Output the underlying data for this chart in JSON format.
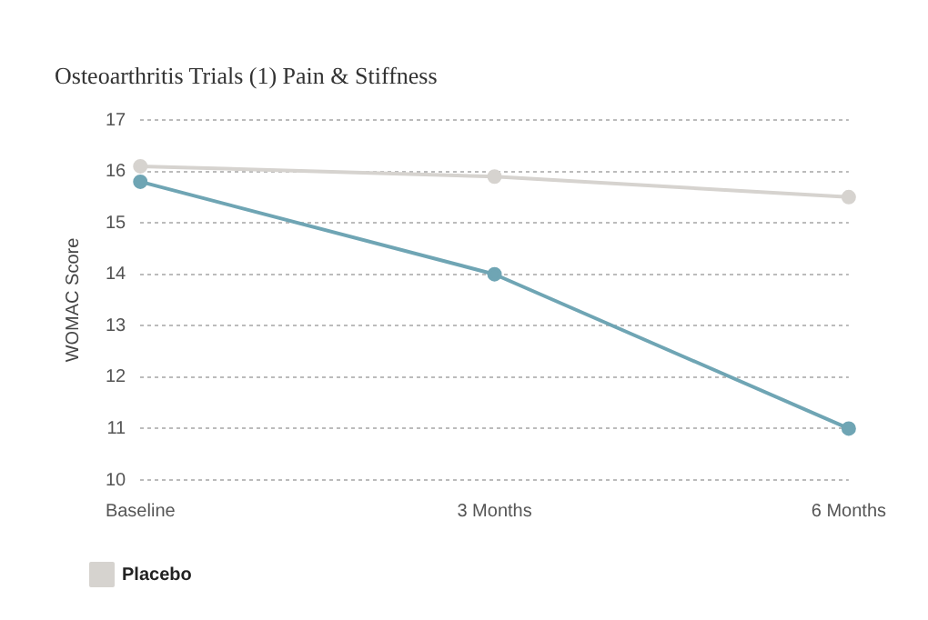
{
  "chart_data": {
    "type": "line",
    "title": "Osteoarthritis Trials (1) Pain & Stiffness",
    "ylabel": "WOMAC Score",
    "categories": [
      "Baseline",
      "3 Months",
      "6 Months"
    ],
    "series": [
      {
        "name": "Placebo",
        "color": "#d6d3cf",
        "values": [
          16.1,
          15.9,
          15.5
        ]
      },
      {
        "color": "#6fa5b4",
        "values": [
          15.8,
          14.0,
          11.0
        ]
      }
    ],
    "ylim": [
      10,
      17
    ],
    "yticks": [
      10,
      11,
      12,
      13,
      14,
      15,
      16,
      17
    ],
    "grid": "y",
    "legend": "bottom",
    "marker": "circle",
    "line_style": "solid"
  }
}
